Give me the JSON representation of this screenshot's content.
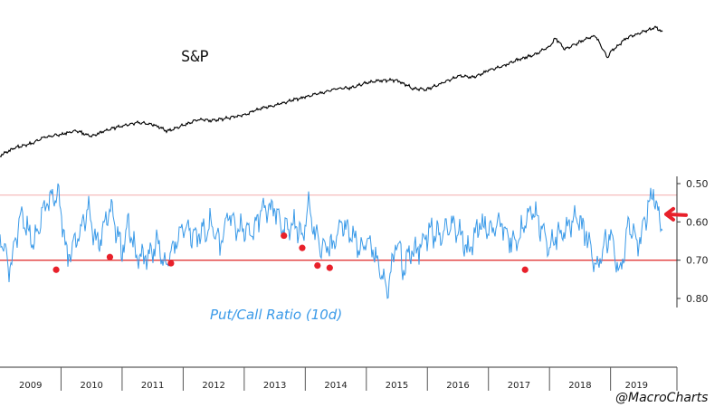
{
  "chart_data": {
    "type": "line",
    "title": "",
    "series": [
      {
        "name": "S&P",
        "color": "#000000",
        "note": "price level, upper panel, unlabeled axis",
        "x": [
          2009.0,
          2009.25,
          2009.5,
          2009.75,
          2010.0,
          2010.25,
          2010.5,
          2010.75,
          2011.0,
          2011.25,
          2011.5,
          2011.75,
          2012.0,
          2012.25,
          2012.5,
          2012.75,
          2013.0,
          2013.25,
          2013.5,
          2013.75,
          2014.0,
          2014.25,
          2014.5,
          2014.75,
          2015.0,
          2015.25,
          2015.5,
          2015.75,
          2016.0,
          2016.25,
          2016.5,
          2016.75,
          2017.0,
          2017.25,
          2017.5,
          2017.75,
          2018.0,
          2018.1,
          2018.25,
          2018.5,
          2018.75,
          2018.95,
          2019.0,
          2019.25,
          2019.5,
          2019.75,
          2019.85
        ],
        "values": [
          740,
          880,
          950,
          1080,
          1120,
          1190,
          1080,
          1200,
          1270,
          1340,
          1300,
          1180,
          1280,
          1390,
          1370,
          1420,
          1470,
          1580,
          1640,
          1730,
          1790,
          1860,
          1940,
          1960,
          2050,
          2090,
          2100,
          1950,
          1930,
          2050,
          2170,
          2140,
          2270,
          2360,
          2470,
          2550,
          2700,
          2850,
          2650,
          2790,
          2900,
          2500,
          2600,
          2850,
          2950,
          3050,
          2950
        ]
      },
      {
        "name": "Put/Call Ratio (10d)",
        "color": "#3a9ae8",
        "note": "inverted right axis",
        "x": [
          2009.0,
          2009.15,
          2009.35,
          2009.55,
          2009.75,
          2009.95,
          2010.1,
          2010.3,
          2010.45,
          2010.6,
          2010.8,
          2011.0,
          2011.1,
          2011.25,
          2011.45,
          2011.6,
          2011.7,
          2011.85,
          2012.0,
          2012.2,
          2012.45,
          2012.6,
          2012.75,
          2012.9,
          2013.1,
          2013.3,
          2013.5,
          2013.65,
          2013.8,
          2013.95,
          2014.05,
          2014.15,
          2014.3,
          2014.45,
          2014.6,
          2014.75,
          2014.9,
          2015.05,
          2015.2,
          2015.35,
          2015.5,
          2015.6,
          2015.75,
          2015.9,
          2016.05,
          2016.2,
          2016.4,
          2016.55,
          2016.7,
          2016.85,
          2017.0,
          2017.2,
          2017.4,
          2017.55,
          2017.7,
          2017.85,
          2018.0,
          2018.1,
          2018.25,
          2018.45,
          2018.6,
          2018.75,
          2018.9,
          2019.0,
          2019.15,
          2019.3,
          2019.45,
          2019.55,
          2019.65,
          2019.7,
          2019.78,
          2019.85
        ],
        "values": [
          0.62,
          0.72,
          0.58,
          0.66,
          0.55,
          0.52,
          0.7,
          0.63,
          0.57,
          0.66,
          0.56,
          0.68,
          0.6,
          0.7,
          0.68,
          0.66,
          0.72,
          0.66,
          0.61,
          0.64,
          0.61,
          0.66,
          0.58,
          0.62,
          0.63,
          0.57,
          0.56,
          0.62,
          0.6,
          0.64,
          0.55,
          0.63,
          0.67,
          0.66,
          0.6,
          0.63,
          0.67,
          0.65,
          0.72,
          0.78,
          0.64,
          0.72,
          0.68,
          0.66,
          0.62,
          0.64,
          0.6,
          0.64,
          0.68,
          0.6,
          0.62,
          0.6,
          0.66,
          0.62,
          0.57,
          0.61,
          0.67,
          0.64,
          0.62,
          0.59,
          0.63,
          0.72,
          0.66,
          0.63,
          0.74,
          0.6,
          0.67,
          0.6,
          0.55,
          0.52,
          0.58,
          0.6
        ]
      }
    ],
    "thresholds": [
      {
        "value": 0.53,
        "color": "#f4b6b6"
      },
      {
        "value": 0.7,
        "color": "#e23a3a"
      }
    ],
    "markers": {
      "color": "#e8202a",
      "x": [
        2009.92,
        2010.8,
        2011.8,
        2013.65,
        2013.95,
        2014.2,
        2014.4,
        2017.6
      ],
      "values": [
        0.725,
        0.692,
        0.708,
        0.636,
        0.668,
        0.714,
        0.72,
        0.725
      ]
    },
    "current_marker_value": 0.58,
    "y_right": {
      "ticks": [
        0.5,
        0.6,
        0.7,
        0.8
      ],
      "tick_labels": [
        "0.50",
        "0.60",
        "0.70",
        "0.80"
      ],
      "range": [
        0.45,
        0.87
      ],
      "inverted": true
    },
    "x_axis": {
      "range": [
        2009.0,
        2019.85
      ],
      "year_labels": [
        "2009",
        "2010",
        "2011",
        "2012",
        "2013",
        "2014",
        "2015",
        "2016",
        "2017",
        "2018",
        "2019"
      ]
    },
    "annotations": {
      "sp_label": "S&P",
      "pc_label": "Put/Call Ratio (10d)",
      "credit": "@MacroCharts",
      "arrow_icon": "left-arrow-icon"
    },
    "colors": {
      "sp": "#000000",
      "pc": "#3a9ae8",
      "marker": "#e8202a",
      "arrow": "#e8202a"
    }
  }
}
